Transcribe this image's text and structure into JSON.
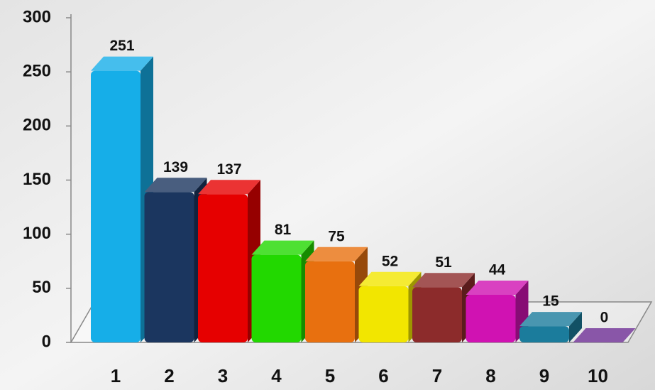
{
  "chart_data": {
    "type": "bar3d",
    "categories": [
      "1",
      "2",
      "3",
      "4",
      "5",
      "6",
      "7",
      "8",
      "9",
      "10"
    ],
    "values": [
      251,
      139,
      137,
      81,
      75,
      52,
      51,
      44,
      15,
      0
    ],
    "colors": [
      "#16aee8",
      "#1b365f",
      "#e60000",
      "#22d800",
      "#e8700f",
      "#f2e600",
      "#8c2b2b",
      "#d012b2",
      "#1b7c9c",
      "#6b2c92"
    ],
    "ylim": [
      0,
      300
    ],
    "yticks": [
      0,
      50,
      100,
      150,
      200,
      250,
      300
    ]
  }
}
